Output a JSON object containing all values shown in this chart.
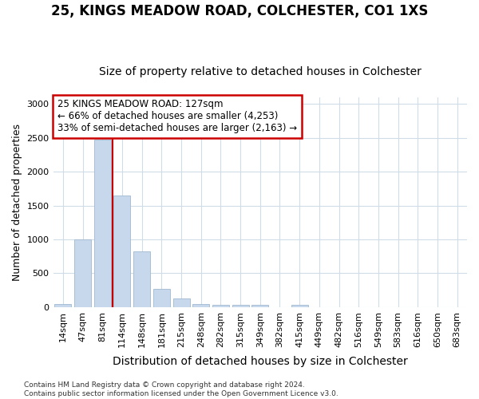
{
  "title": "25, KINGS MEADOW ROAD, COLCHESTER, CO1 1XS",
  "subtitle": "Size of property relative to detached houses in Colchester",
  "xlabel": "Distribution of detached houses by size in Colchester",
  "ylabel": "Number of detached properties",
  "bar_color": "#c8d8ec",
  "bar_edge_color": "#a0b8d0",
  "categories": [
    "14sqm",
    "47sqm",
    "81sqm",
    "114sqm",
    "148sqm",
    "181sqm",
    "215sqm",
    "248sqm",
    "282sqm",
    "315sqm",
    "349sqm",
    "382sqm",
    "415sqm",
    "449sqm",
    "482sqm",
    "516sqm",
    "549sqm",
    "583sqm",
    "616sqm",
    "650sqm",
    "683sqm"
  ],
  "values": [
    50,
    1000,
    2470,
    1650,
    825,
    270,
    130,
    50,
    40,
    40,
    30,
    0,
    30,
    0,
    0,
    0,
    0,
    0,
    0,
    0,
    0
  ],
  "ylim": [
    0,
    3100
  ],
  "yticks": [
    0,
    500,
    1000,
    1500,
    2000,
    2500,
    3000
  ],
  "property_line_x": 2.5,
  "annotation_line1": "25 KINGS MEADOW ROAD: 127sqm",
  "annotation_line2": "← 66% of detached houses are smaller (4,253)",
  "annotation_line3": "33% of semi-detached houses are larger (2,163) →",
  "annotation_border_color": "#cc0000",
  "line_color": "#cc0000",
  "footer_text": "Contains HM Land Registry data © Crown copyright and database right 2024.\nContains public sector information licensed under the Open Government Licence v3.0.",
  "background_color": "#ffffff",
  "grid_color": "#d0dce8",
  "title_fontsize": 12,
  "subtitle_fontsize": 10,
  "tick_fontsize": 8,
  "ylabel_fontsize": 9,
  "xlabel_fontsize": 10
}
